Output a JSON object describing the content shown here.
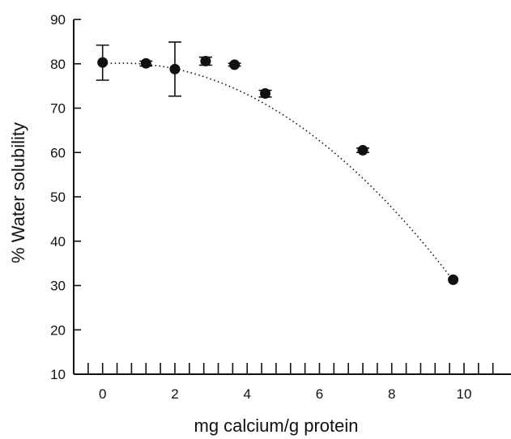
{
  "chart_data": {
    "type": "scatter",
    "title": "",
    "xlabel": "mg calcium/g protein",
    "ylabel": "% Water solubility",
    "xlim": [
      -0.8,
      11.3
    ],
    "ylim": [
      10,
      90
    ],
    "x_ticks": [
      0,
      2,
      4,
      6,
      8,
      10
    ],
    "y_ticks": [
      10,
      20,
      30,
      40,
      50,
      60,
      70,
      80,
      90
    ],
    "x_minor_step": 0.4,
    "grid": false,
    "legend": "none",
    "points": [
      {
        "x": 0.0,
        "y": 80.3,
        "err_low": 76.3,
        "err_high": 84.2
      },
      {
        "x": 1.2,
        "y": 80.1,
        "err_low": 79.5,
        "err_high": 80.6
      },
      {
        "x": 2.0,
        "y": 78.8,
        "err_low": 72.7,
        "err_high": 84.9
      },
      {
        "x": 2.85,
        "y": 80.6,
        "err_low": 79.7,
        "err_high": 81.5
      },
      {
        "x": 3.65,
        "y": 79.8,
        "err_low": 79.5,
        "err_high": 80.1
      },
      {
        "x": 4.5,
        "y": 73.3,
        "err_low": 72.5,
        "err_high": 74.0
      },
      {
        "x": 7.2,
        "y": 60.5,
        "err_low": 60.0,
        "err_high": 61.0
      },
      {
        "x": 9.7,
        "y": 31.3,
        "err_low": 31.3,
        "err_high": 31.3
      }
    ],
    "fit_curve": {
      "style": "dotted",
      "x_range": [
        0,
        9.7
      ],
      "coefficients": {
        "a": 80.0,
        "b": 0.59,
        "c": -0.58
      }
    },
    "colors": {
      "marks": "#111111",
      "background": "#ffffff"
    }
  }
}
